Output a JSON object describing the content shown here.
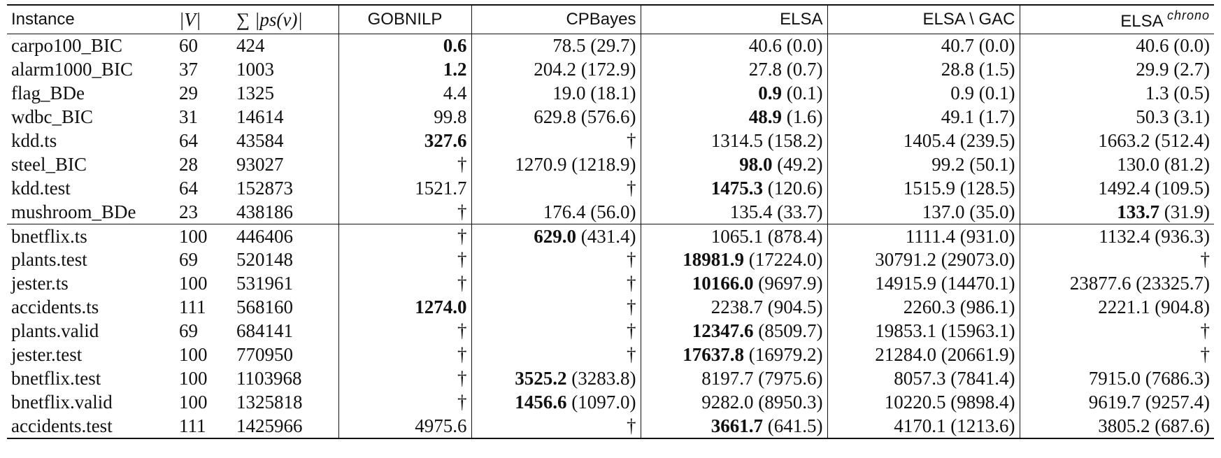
{
  "table": {
    "headers": {
      "instance": "Instance",
      "v": "|V|",
      "ps_prefix": "∑",
      "ps": "|ps(v)|",
      "gobnilp": "GOBNILP",
      "cpbayes": "CPBayes",
      "elsa": "ELSA",
      "elsa_gac": "ELSA \\ GAC",
      "elsa_chrono_base": "ELSA",
      "elsa_chrono_sup": "chrono"
    },
    "rows": [
      {
        "instance": "carpo100_BIC",
        "v": "60",
        "ps": "424",
        "gobnilp": "0.6",
        "cpbayes": "78.5 (29.7)",
        "elsa": "40.6 (0.0)",
        "elsa_gac": "40.7 (0.0)",
        "elsa_chrono": "40.6 (0.0)"
      },
      {
        "instance": "alarm1000_BIC",
        "v": "37",
        "ps": "1003",
        "gobnilp": "1.2",
        "cpbayes": "204.2 (172.9)",
        "elsa": "27.8 (0.7)",
        "elsa_gac": "28.8 (1.5)",
        "elsa_chrono": "29.9 (2.7)"
      },
      {
        "instance": "flag_BDe",
        "v": "29",
        "ps": "1325",
        "gobnilp": "4.4",
        "cpbayes": "19.0 (18.1)",
        "elsa": "0.9 (0.1)",
        "elsa_gac": "0.9 (0.1)",
        "elsa_chrono": "1.3 (0.5)"
      },
      {
        "instance": "wdbc_BIC",
        "v": "31",
        "ps": "14614",
        "gobnilp": "99.8",
        "cpbayes": "629.8 (576.6)",
        "elsa": "48.9 (1.6)",
        "elsa_gac": "49.1 (1.7)",
        "elsa_chrono": "50.3 (3.1)"
      },
      {
        "instance": "kdd.ts",
        "v": "64",
        "ps": "43584",
        "gobnilp": "327.6",
        "cpbayes": "†",
        "elsa": "1314.5 (158.2)",
        "elsa_gac": "1405.4 (239.5)",
        "elsa_chrono": "1663.2 (512.4)"
      },
      {
        "instance": "steel_BIC",
        "v": "28",
        "ps": "93027",
        "gobnilp": "†",
        "cpbayes": "1270.9 (1218.9)",
        "elsa": "98.0 (49.2)",
        "elsa_gac": "99.2 (50.1)",
        "elsa_chrono": "130.0 (81.2)"
      },
      {
        "instance": "kdd.test",
        "v": "64",
        "ps": "152873",
        "gobnilp": "1521.7",
        "cpbayes": "†",
        "elsa": "1475.3 (120.6)",
        "elsa_gac": "1515.9 (128.5)",
        "elsa_chrono": "1492.4 (109.5)"
      },
      {
        "instance": "mushroom_BDe",
        "v": "23",
        "ps": "438186",
        "gobnilp": "†",
        "cpbayes": "176.4 (56.0)",
        "elsa": "135.4 (33.7)",
        "elsa_gac": "137.0 (35.0)",
        "elsa_chrono": "133.7 (31.9)"
      },
      {
        "instance": "bnetflix.ts",
        "v": "100",
        "ps": "446406",
        "gobnilp": "†",
        "cpbayes": "629.0 (431.4)",
        "elsa": "1065.1 (878.4)",
        "elsa_gac": "1111.4 (931.0)",
        "elsa_chrono": "1132.4 (936.3)"
      },
      {
        "instance": "plants.test",
        "v": "69",
        "ps": "520148",
        "gobnilp": "†",
        "cpbayes": "†",
        "elsa": "18981.9 (17224.0)",
        "elsa_gac": "30791.2 (29073.0)",
        "elsa_chrono": "†"
      },
      {
        "instance": "jester.ts",
        "v": "100",
        "ps": "531961",
        "gobnilp": "†",
        "cpbayes": "†",
        "elsa": "10166.0 (9697.9)",
        "elsa_gac": "14915.9 (14470.1)",
        "elsa_chrono": "23877.6 (23325.7)"
      },
      {
        "instance": "accidents.ts",
        "v": "111",
        "ps": "568160",
        "gobnilp": "1274.0",
        "cpbayes": "†",
        "elsa": "2238.7 (904.5)",
        "elsa_gac": "2260.3 (986.1)",
        "elsa_chrono": "2221.1 (904.8)"
      },
      {
        "instance": "plants.valid",
        "v": "69",
        "ps": "684141",
        "gobnilp": "†",
        "cpbayes": "†",
        "elsa": "12347.6 (8509.7)",
        "elsa_gac": "19853.1 (15963.1)",
        "elsa_chrono": "†"
      },
      {
        "instance": "jester.test",
        "v": "100",
        "ps": "770950",
        "gobnilp": "†",
        "cpbayes": "†",
        "elsa": "17637.8 (16979.2)",
        "elsa_gac": "21284.0 (20661.9)",
        "elsa_chrono": "†"
      },
      {
        "instance": "bnetflix.test",
        "v": "100",
        "ps": "1103968",
        "gobnilp": "†",
        "cpbayes": "3525.2 (3283.8)",
        "elsa": "8197.7 (7975.6)",
        "elsa_gac": "8057.3 (7841.4)",
        "elsa_chrono": "7915.0 (7686.3)"
      },
      {
        "instance": "bnetflix.valid",
        "v": "100",
        "ps": "1325818",
        "gobnilp": "†",
        "cpbayes": "1456.6 (1097.0)",
        "elsa": "9282.0 (8950.3)",
        "elsa_gac": "10220.5 (9898.4)",
        "elsa_chrono": "9619.7 (9257.4)"
      },
      {
        "instance": "accidents.test",
        "v": "111",
        "ps": "1425966",
        "gobnilp": "4975.6",
        "cpbayes": "†",
        "elsa": "3661.7 (641.5)",
        "elsa_gac": "4170.1 (1213.6)",
        "elsa_chrono": "3805.2 (687.6)"
      }
    ],
    "emphasis": [
      {
        "row": 0,
        "col": "gobnilp",
        "text": "0.6"
      },
      {
        "row": 1,
        "col": "gobnilp",
        "text": "1.2"
      },
      {
        "row": 2,
        "col": "elsa",
        "text": "0.9"
      },
      {
        "row": 3,
        "col": "elsa",
        "text": "48.9"
      },
      {
        "row": 4,
        "col": "gobnilp",
        "text": "327.6"
      },
      {
        "row": 5,
        "col": "elsa",
        "text": "98.0"
      },
      {
        "row": 6,
        "col": "elsa",
        "text": "1475.3"
      },
      {
        "row": 7,
        "col": "elsa_chrono",
        "text": "133.7"
      },
      {
        "row": 8,
        "col": "cpbayes",
        "text": "629.0"
      },
      {
        "row": 9,
        "col": "elsa",
        "text": "18981.9"
      },
      {
        "row": 10,
        "col": "elsa",
        "text": "10166.0"
      },
      {
        "row": 11,
        "col": "gobnilp",
        "text": "1274.0"
      },
      {
        "row": 12,
        "col": "elsa",
        "text": "12347.6"
      },
      {
        "row": 13,
        "col": "elsa",
        "text": "17637.8"
      },
      {
        "row": 14,
        "col": "cpbayes",
        "text": "3525.2"
      },
      {
        "row": 15,
        "col": "cpbayes",
        "text": "1456.6"
      },
      {
        "row": 16,
        "col": "elsa",
        "text": "3661.7"
      }
    ]
  }
}
